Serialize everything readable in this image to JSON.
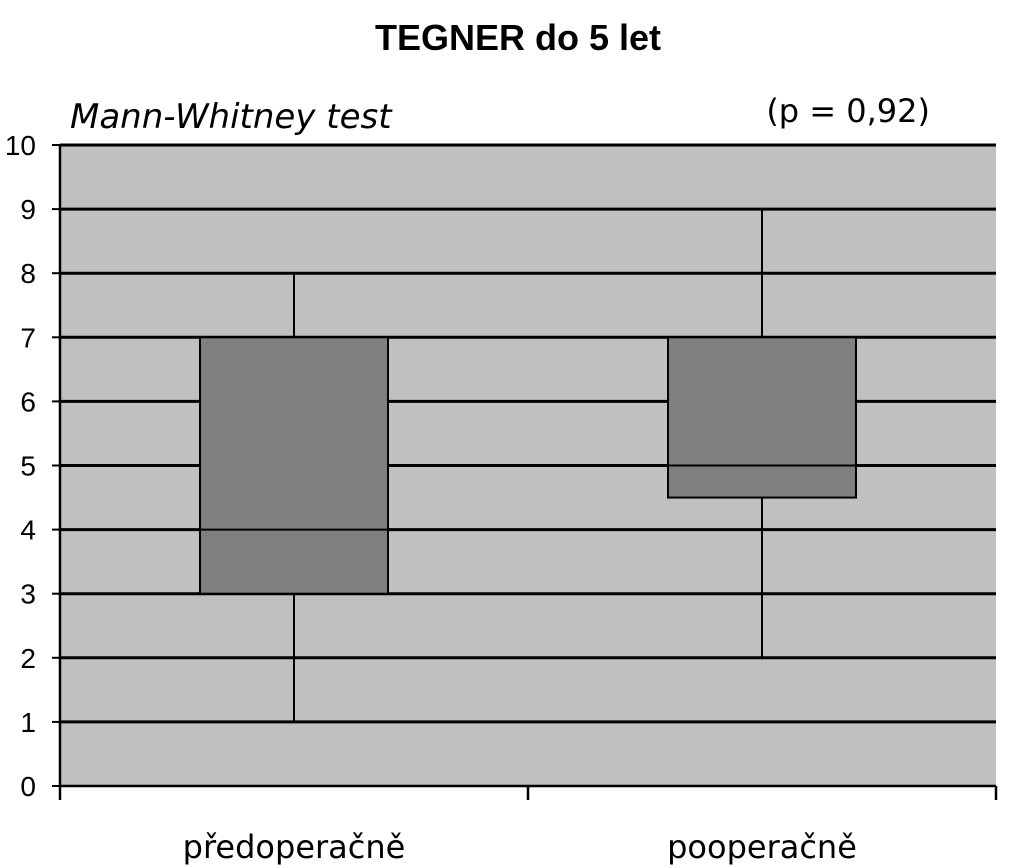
{
  "chart_data": {
    "type": "box",
    "title": "TEGNER do 5 let",
    "subtitle": "Mann-Whitney test",
    "annotation": "(p = 0,92)",
    "ylim": [
      0,
      10
    ],
    "yticks": [
      0,
      1,
      2,
      3,
      4,
      5,
      6,
      7,
      8,
      9,
      10
    ],
    "grid": true,
    "categories": [
      "předoperačně",
      "pooperačně"
    ],
    "boxes": [
      {
        "category": "předoperačně",
        "min": 1,
        "q1": 3,
        "median": 4,
        "q3": 7,
        "max": 8
      },
      {
        "category": "pooperačně",
        "min": 2,
        "q1": 4.5,
        "median": 5,
        "q3": 7,
        "max": 9
      }
    ],
    "colors": {
      "plot_background": "#c0c0c0",
      "box_fill": "#7f7f7f",
      "lines": "#000000"
    }
  }
}
